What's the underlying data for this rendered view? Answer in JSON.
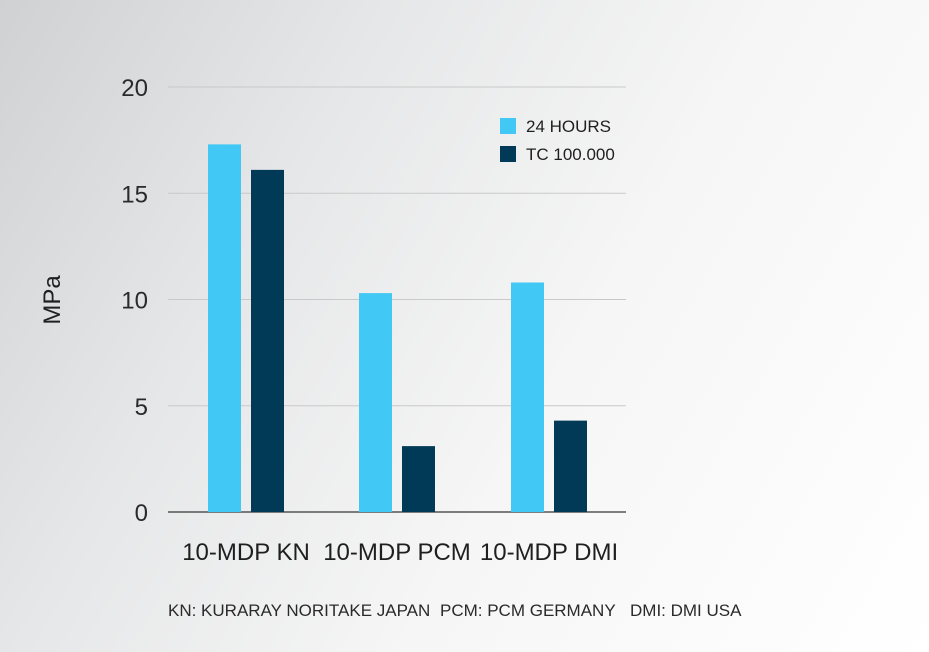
{
  "chart_data": {
    "type": "bar",
    "ylabel": "MPa",
    "ylim": [
      0,
      20
    ],
    "yticks": [
      "0",
      "5",
      "10",
      "15",
      "20"
    ],
    "grid": true,
    "legend_position": "top-right",
    "categories": [
      "10-MDP KN",
      "10-MDP PCM",
      "10-MDP DMI"
    ],
    "series": [
      {
        "name": "24 HOURS",
        "color": "#42c8f4",
        "values": [
          17.3,
          10.3,
          10.8
        ]
      },
      {
        "name": "TC 100.000",
        "color": "#003a57",
        "values": [
          16.1,
          3.1,
          4.3
        ]
      }
    ],
    "footnote": {
      "kn": "KN: KURARAY NORITAKE JAPAN",
      "pcm": "PCM: PCM GERMANY",
      "dmi": "DMI: DMI USA"
    }
  }
}
